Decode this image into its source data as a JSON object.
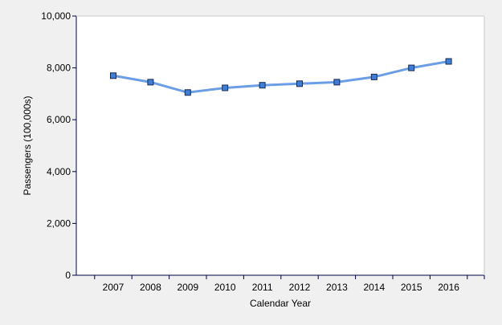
{
  "chart_data": {
    "type": "line",
    "title": "",
    "xlabel": "Calendar Year",
    "ylabel": "Passengers (100,000s)",
    "categories": [
      "2007",
      "2008",
      "2009",
      "2010",
      "2011",
      "2012",
      "2013",
      "2014",
      "2015",
      "2016"
    ],
    "series": [
      {
        "values": [
          7700,
          7450,
          7050,
          7230,
          7330,
          7390,
          7450,
          7650,
          8000,
          8250
        ]
      }
    ],
    "ylim": [
      0,
      10000
    ],
    "yticks": [
      0,
      2000,
      4000,
      6000,
      8000,
      10000
    ],
    "ytick_labels": [
      "0",
      "2,000",
      "4,000",
      "6,000",
      "8,000",
      "10,000"
    ],
    "grid": false,
    "legend": "none",
    "colors": {
      "background": "#f0f0f0",
      "plot_area": "#ffffff",
      "axis": "#000040",
      "line": "#6c9ee6",
      "marker_fill": "#3d7fd8",
      "marker_stroke": "#1c2a52"
    }
  }
}
